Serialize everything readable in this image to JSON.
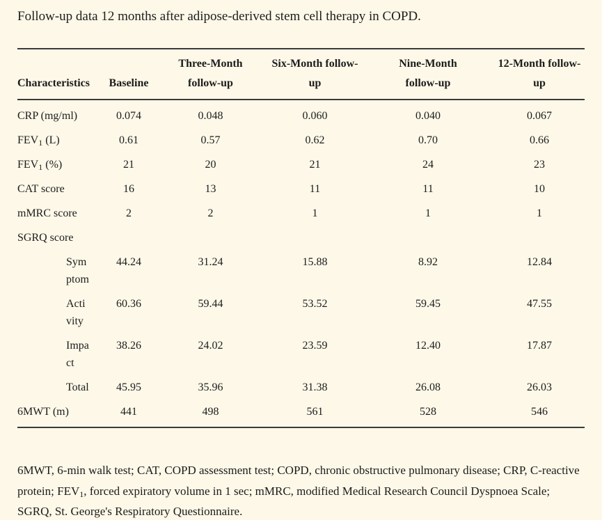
{
  "page": {
    "title": "Follow-up data 12 months after adipose-derived stem cell therapy in COPD.",
    "colors": {
      "background": "#FDF8E8",
      "text": "#1C1C1C",
      "rule": "#3A3A3A"
    }
  },
  "table": {
    "columns": [
      {
        "label": "Characteristics"
      },
      {
        "label": "Baseline"
      },
      {
        "label": "Three-Month\nfollow-up"
      },
      {
        "label": "Six-Month follow-\nup"
      },
      {
        "label": "Nine-Month\nfollow-up"
      },
      {
        "label": "12-Month follow-\nup"
      }
    ],
    "rows": [
      {
        "label": "CRP (mg/ml)",
        "values": [
          "0.074",
          "0.048",
          "0.060",
          "0.040",
          "0.067"
        ]
      },
      {
        "label_pre": "FEV",
        "label_sub": "1",
        "label_post": " (L)",
        "values": [
          "0.61",
          "0.57",
          "0.62",
          "0.70",
          "0.66"
        ]
      },
      {
        "label_pre": "FEV",
        "label_sub": "1",
        "label_post": " (%)",
        "values": [
          "21",
          "20",
          "21",
          "24",
          "23"
        ]
      },
      {
        "label": "CAT score",
        "values": [
          "16",
          "13",
          "11",
          "11",
          "10"
        ]
      },
      {
        "label": "mMRC score",
        "values": [
          "2",
          "2",
          "1",
          "1",
          "1"
        ]
      },
      {
        "label": "SGRQ score",
        "values": [
          "",
          "",
          "",
          "",
          ""
        ]
      },
      {
        "label": "Sym\nptom",
        "values": [
          "44.24",
          "31.24",
          "15.88",
          "8.92",
          "12.84"
        ]
      },
      {
        "label": "Acti\nvity",
        "values": [
          "60.36",
          "59.44",
          "53.52",
          "59.45",
          "47.55"
        ]
      },
      {
        "label": "Impa\nct",
        "values": [
          "38.26",
          "24.02",
          "23.59",
          "12.40",
          "17.87"
        ]
      },
      {
        "label": "Total",
        "values": [
          "45.95",
          "35.96",
          "31.38",
          "26.08",
          "26.03"
        ]
      },
      {
        "label": "6MWT (m)",
        "values": [
          "441",
          "498",
          "561",
          "528",
          "546"
        ]
      }
    ]
  },
  "footnote": {
    "part1": "6MWT, 6-min walk test; CAT, COPD assessment test; COPD, chronic obstructive pulmonary disease; CRP, C-reactive protein; FEV",
    "sub": "1",
    "part2": ", forced expiratory volume in 1 sec; mMRC, modified Medical Research Council Dyspnoea Scale; SGRQ, St. George's Respiratory Questionnaire."
  }
}
